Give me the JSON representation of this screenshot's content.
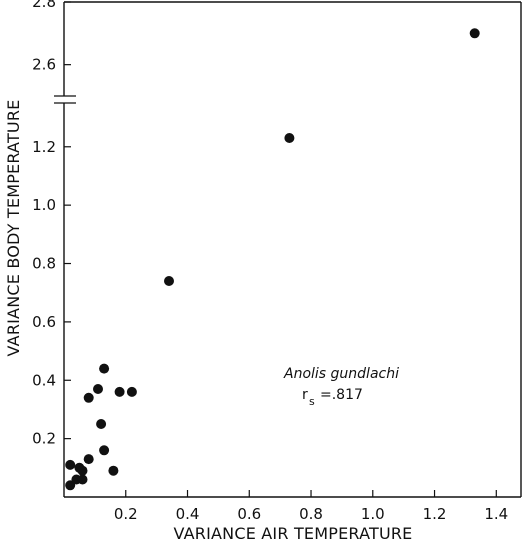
{
  "chart_data": {
    "type": "scatter",
    "xlabel": "VARIANCE AIR TEMPERATURE",
    "ylabel": "VARIANCE BODY TEMPERATURE",
    "xlim": [
      0,
      1.48
    ],
    "ylim_lower": [
      0,
      1.35
    ],
    "ylim_upper": [
      2.5,
      2.8
    ],
    "y_axis_break": [
      1.35,
      2.5
    ],
    "x_ticks": [
      0.2,
      0.4,
      0.6,
      0.8,
      1.0,
      1.2,
      1.4
    ],
    "x_tick_labels": [
      "0.2",
      "0.4",
      "0.6",
      "0.8",
      "1.0",
      "1.2",
      "1.4"
    ],
    "y_ticks": [
      0.2,
      0.4,
      0.6,
      0.8,
      1.0,
      1.2,
      2.6,
      2.8
    ],
    "y_tick_labels": [
      "0.2",
      "0.4",
      "0.6",
      "0.8",
      "1.0",
      "1.2",
      "2.6",
      "2.8"
    ],
    "grid": false,
    "series": [
      {
        "points": [
          {
            "x": 0.02,
            "y": 0.04
          },
          {
            "x": 0.02,
            "y": 0.11
          },
          {
            "x": 0.04,
            "y": 0.06
          },
          {
            "x": 0.05,
            "y": 0.1
          },
          {
            "x": 0.06,
            "y": 0.06
          },
          {
            "x": 0.06,
            "y": 0.09
          },
          {
            "x": 0.08,
            "y": 0.13
          },
          {
            "x": 0.08,
            "y": 0.34
          },
          {
            "x": 0.11,
            "y": 0.37
          },
          {
            "x": 0.12,
            "y": 0.25
          },
          {
            "x": 0.13,
            "y": 0.16
          },
          {
            "x": 0.13,
            "y": 0.44
          },
          {
            "x": 0.16,
            "y": 0.09
          },
          {
            "x": 0.18,
            "y": 0.36
          },
          {
            "x": 0.22,
            "y": 0.36
          },
          {
            "x": 0.34,
            "y": 0.74
          },
          {
            "x": 0.73,
            "y": 1.23
          },
          {
            "x": 1.33,
            "y": 2.7
          }
        ]
      }
    ],
    "annotation": {
      "species": "Anolis gundlachi",
      "stat_symbol": "r",
      "stat_subscript": "s",
      "stat_value": "=.817"
    }
  }
}
